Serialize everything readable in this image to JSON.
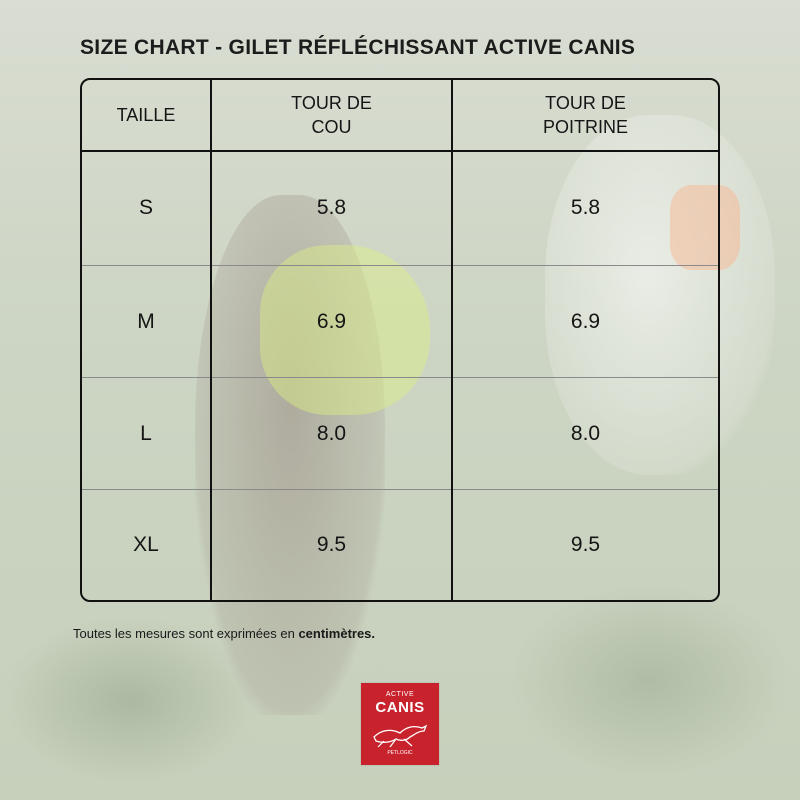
{
  "title": "SIZE CHART - GILET RÉFLÉCHISSANT ACTIVE CANIS",
  "table": {
    "headers": [
      "TAILLE",
      "TOUR DE COU",
      "TOUR DE POITRINE"
    ],
    "header_lines": {
      "col1": [
        "TAILLE"
      ],
      "col2": [
        "TOUR DE",
        "COU"
      ],
      "col3": [
        "TOUR DE",
        "POITRINE"
      ]
    },
    "rows": [
      {
        "taille": "S",
        "cou": "5.8",
        "poitrine": "5.8"
      },
      {
        "taille": "M",
        "cou": "6.9",
        "poitrine": "6.9"
      },
      {
        "taille": "L",
        "cou": "8.0",
        "poitrine": "8.0"
      },
      {
        "taille": "XL",
        "cou": "9.5",
        "poitrine": "9.5"
      }
    ]
  },
  "note": {
    "prefix": "Toutes les mesures sont exprimées en ",
    "emphasis": "centimètres."
  },
  "logo": {
    "line1": "ACTIVE",
    "line2": "CANIS",
    "line3": "PETLOGIC",
    "color": "#c8232c"
  }
}
